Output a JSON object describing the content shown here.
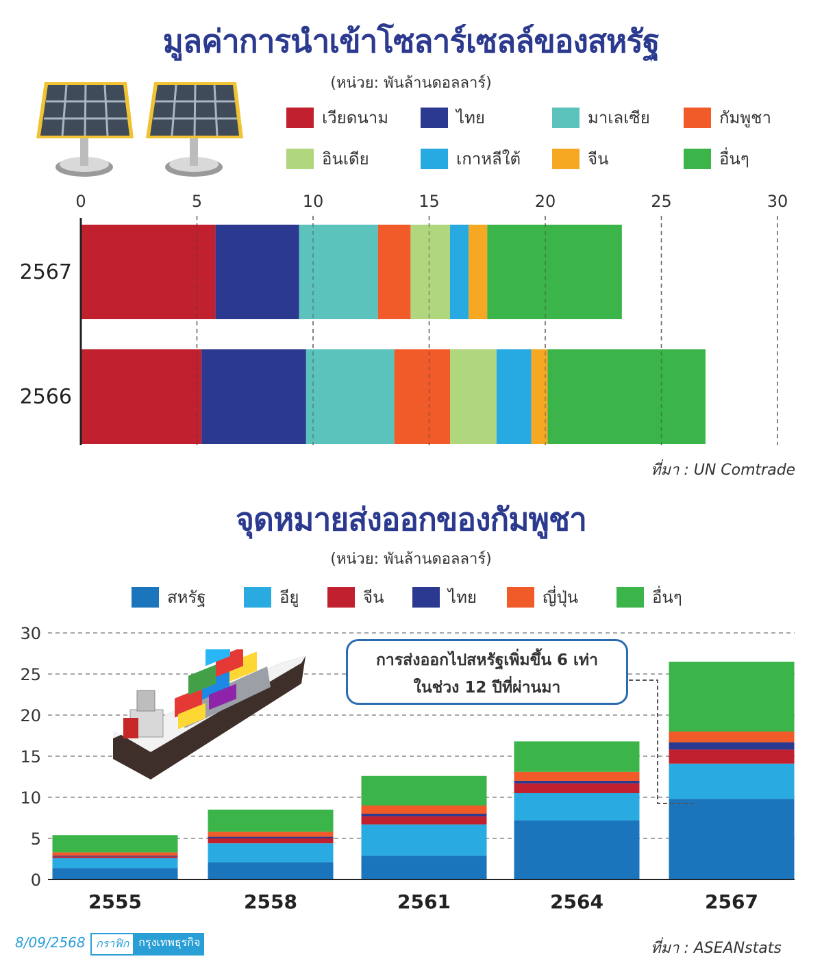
{
  "top": {
    "title": "มูลค่าการนำเข้าโซลาร์เซลล์ของสหรัฐ",
    "unit": "(หน่วย: พันล้านดอลลาร์)",
    "source": "ที่มา : UN Comtrade"
  },
  "bottom": {
    "title": "จุดหมายส่งออกของกัมพูชา",
    "unit": "(หน่วย: พันล้านดอลลาร์)",
    "source": "ที่มา : ASEANstats",
    "callout_line1": "การส่งออกไปสหรัฐเพิ่มขึ้น 6 เท่า",
    "callout_line2": "ในช่วง 12 ปีที่ผ่านมา"
  },
  "footer": {
    "date": "8/09/2568",
    "brand_label": "กราฟิก",
    "brand_name": "กรุงเทพธุรกิจ"
  },
  "chart_data": [
    {
      "type": "bar",
      "orientation": "horizontal",
      "stacked": true,
      "title": "มูลค่าการนำเข้าโซลาร์เซลล์ของสหรัฐ",
      "categories": [
        "2567",
        "2566"
      ],
      "xlim": [
        0,
        30
      ],
      "xticks": [
        0,
        5,
        10,
        15,
        20,
        25,
        30
      ],
      "grid": "dashed vertical",
      "legend_position": "top",
      "series": [
        {
          "name": "เวียดนาม",
          "color": "#c1202f",
          "values": [
            5.8,
            5.2
          ]
        },
        {
          "name": "ไทย",
          "color": "#2b3990",
          "values": [
            3.6,
            4.5
          ]
        },
        {
          "name": "มาเลเซีย",
          "color": "#5bc2bc",
          "values": [
            3.4,
            3.8
          ]
        },
        {
          "name": "กัมพูชา",
          "color": "#f15a29",
          "values": [
            1.4,
            2.4
          ]
        },
        {
          "name": "อินเดีย",
          "color": "#b0d67e",
          "values": [
            1.7,
            2.0
          ]
        },
        {
          "name": "เกาหลีใต้",
          "color": "#27aae1",
          "values": [
            0.8,
            1.5
          ]
        },
        {
          "name": "จีน",
          "color": "#f7a823",
          "values": [
            0.8,
            0.7
          ]
        },
        {
          "name": "อื่นๆ",
          "color": "#3bb54a",
          "values": [
            5.8,
            6.8
          ]
        }
      ]
    },
    {
      "type": "bar",
      "orientation": "vertical",
      "stacked": true,
      "title": "จุดหมายส่งออกของกัมพูชา",
      "categories": [
        "2555",
        "2558",
        "2561",
        "2564",
        "2567"
      ],
      "ylim": [
        0,
        30
      ],
      "yticks": [
        0,
        5,
        10,
        15,
        20,
        25,
        30
      ],
      "grid": "dashed horizontal",
      "legend_position": "top",
      "series": [
        {
          "name": "สหรัฐ",
          "color": "#1a75bc",
          "values": [
            1.4,
            2.1,
            2.9,
            7.2,
            9.8
          ]
        },
        {
          "name": "อียู",
          "color": "#29abe2",
          "values": [
            1.2,
            2.3,
            3.8,
            3.3,
            4.3
          ]
        },
        {
          "name": "จีน",
          "color": "#c1202f",
          "values": [
            0.2,
            0.6,
            1.0,
            1.2,
            1.7
          ]
        },
        {
          "name": "ไทย",
          "color": "#2b3990",
          "values": [
            0.1,
            0.2,
            0.3,
            0.3,
            0.9
          ]
        },
        {
          "name": "ญี่ปุ่น",
          "color": "#f15a29",
          "values": [
            0.4,
            0.6,
            1.0,
            1.1,
            1.3
          ]
        },
        {
          "name": "อื่นๆ",
          "color": "#3bb54a",
          "values": [
            2.1,
            2.7,
            3.6,
            3.7,
            8.5
          ]
        }
      ]
    }
  ]
}
